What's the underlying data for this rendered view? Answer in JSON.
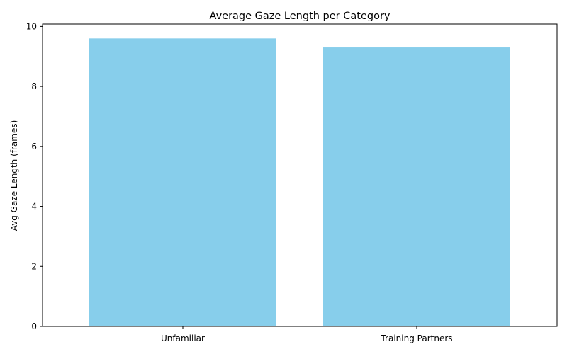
{
  "chart_data": {
    "type": "bar",
    "title": "Average Gaze Length per Category",
    "xlabel": "",
    "ylabel": "Avg Gaze Length (frames)",
    "categories": [
      "Unfamiliar",
      "Training Partners"
    ],
    "values": [
      9.6,
      9.3
    ],
    "ylim": [
      0,
      10.08
    ],
    "yticks": [
      0,
      2,
      4,
      6,
      8,
      10
    ],
    "bar_color": "#87CEEB",
    "grid": false,
    "legend": "none"
  }
}
